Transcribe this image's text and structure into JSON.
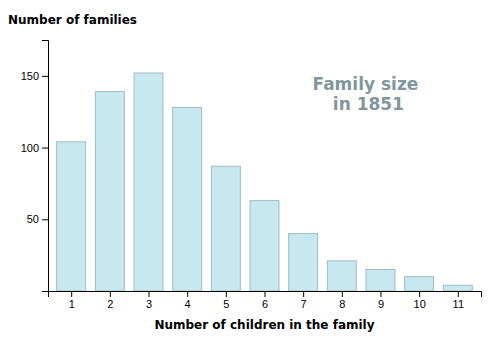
{
  "chart_data": {
    "type": "bar",
    "title": "Family size\nin 1851",
    "x": [
      1,
      2,
      3,
      4,
      5,
      6,
      7,
      8,
      9,
      10,
      11
    ],
    "values": [
      104,
      139,
      152,
      128,
      87,
      63,
      40,
      21,
      15,
      10,
      4
    ],
    "color": "#c8e8f0",
    "xlabel": "Number of children in the family",
    "ylabel": "Number of families",
    "xlim": [
      0.4,
      11.6
    ],
    "xticks": [
      1,
      2,
      3,
      4,
      5,
      6,
      7,
      8,
      9,
      10,
      11
    ],
    "ylim": [
      0,
      175
    ],
    "yticks": [
      50,
      100,
      150
    ],
    "grid": false
  }
}
